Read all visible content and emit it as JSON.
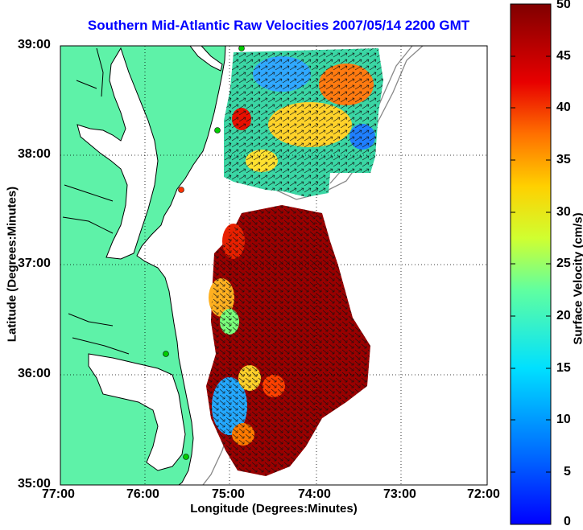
{
  "title": "Southern Mid-Atlantic Raw Velocities 2007/05/14 2200 GMT",
  "axes": {
    "xlabel": "Longitude (Degrees:Minutes)",
    "ylabel": "Latitude (Degrees:Minutes)",
    "xticks": [
      "77:00",
      "76:00",
      "75:00",
      "74:00",
      "73:00",
      "72:00"
    ],
    "yticks": [
      "39:00",
      "38:00",
      "37:00",
      "36:00",
      "35:00"
    ],
    "grid": "dotted"
  },
  "colorbar": {
    "label": "Surface Velocity (cm/s)",
    "ticks": [
      "50",
      "45",
      "40",
      "35",
      "30",
      "25",
      "20",
      "15",
      "10",
      "5",
      "0"
    ],
    "min": 0,
    "max": 50,
    "colormap": "jet"
  },
  "colors": {
    "land": "#5ef2a8",
    "coastline": "#000000",
    "water": "#ffffff",
    "title": "#0000ff",
    "station": "#00cc00",
    "station_alt": "#ff3300"
  }
}
